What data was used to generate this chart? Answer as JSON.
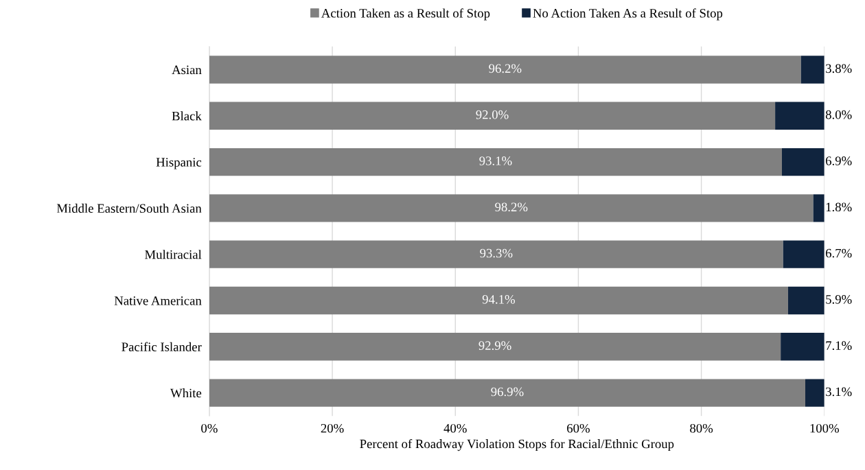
{
  "chart_data": {
    "type": "bar",
    "orientation": "horizontal",
    "stacked": true,
    "xlabel": "Percent of Roadway Violation Stops for Racial/Ethnic Group",
    "categories": [
      "Asian",
      "Black",
      "Hispanic",
      "Middle Eastern/South Asian",
      "Multiracial",
      "Native American",
      "Pacific Islander",
      "White"
    ],
    "series": [
      {
        "name": "Action Taken as a Result of Stop",
        "color": "#808080",
        "values": [
          96.2,
          92.0,
          93.1,
          98.2,
          93.3,
          94.1,
          92.9,
          96.9
        ],
        "value_labels": [
          "96.2%",
          "92.0%",
          "93.1%",
          "98.2%",
          "93.3%",
          "94.1%",
          "92.9%",
          "96.9%"
        ]
      },
      {
        "name": "No Action Taken As a Result of Stop",
        "color": "#10243e",
        "values": [
          3.8,
          8.0,
          6.9,
          1.8,
          6.7,
          5.9,
          7.1,
          3.1
        ],
        "value_labels": [
          "3.8%",
          "8.0%",
          "6.9%",
          "1.8%",
          "6.7%",
          "5.9%",
          "7.1%",
          "3.1%"
        ]
      }
    ],
    "xlim": [
      0,
      100
    ],
    "xticks": [
      {
        "value": 0,
        "label": "0%"
      },
      {
        "value": 20,
        "label": "20%"
      },
      {
        "value": 40,
        "label": "40%"
      },
      {
        "value": 60,
        "label": "60%"
      },
      {
        "value": 80,
        "label": "80%"
      },
      {
        "value": 100,
        "label": "100%"
      }
    ],
    "grid": "x",
    "legend": "top"
  }
}
